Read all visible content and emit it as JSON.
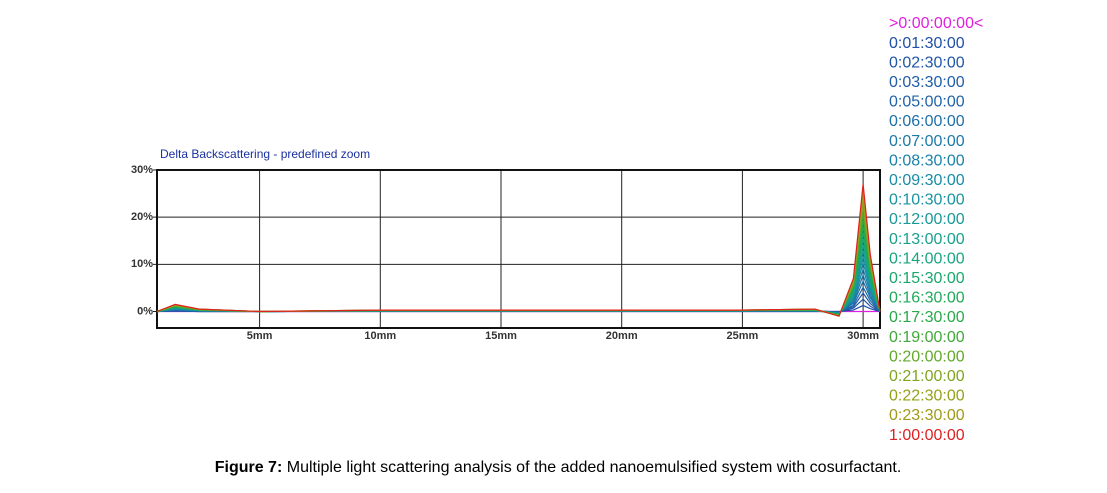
{
  "chart_data": {
    "type": "line",
    "title": "Delta Backscattering - predefined zoom",
    "x": [
      0.75,
      1.5,
      2.5,
      5,
      10,
      15,
      20,
      25,
      28,
      29,
      29.6,
      30,
      30.3,
      30.7
    ],
    "xlim": [
      0.75,
      30.7
    ],
    "xticks": [
      {
        "value": 5,
        "label": "5mm"
      },
      {
        "value": 10,
        "label": "10mm"
      },
      {
        "value": 15,
        "label": "15mm"
      },
      {
        "value": 20,
        "label": "20mm"
      },
      {
        "value": 25,
        "label": "25mm"
      },
      {
        "value": 30,
        "label": "30mm"
      }
    ],
    "ylim": [
      -3.5,
      30
    ],
    "yticks": [
      {
        "value": 0,
        "label": "0%"
      },
      {
        "value": 10,
        "label": "10%"
      },
      {
        "value": 20,
        "label": "20%"
      },
      {
        "value": 30,
        "label": "30%"
      }
    ],
    "grid": true,
    "series": [
      {
        "name": ">0:00:00:00<",
        "color": "#e020e0",
        "values": [
          0,
          0,
          0,
          0,
          0,
          0,
          0,
          0,
          0,
          0,
          0,
          0,
          0,
          0
        ]
      },
      {
        "name": "0:01:30:00",
        "color": "#1f4fa8",
        "values": [
          0,
          0.1,
          0,
          0,
          0,
          0,
          0,
          0,
          0,
          0,
          0.3,
          1.3,
          0.6,
          0
        ]
      },
      {
        "name": "0:02:30:00",
        "color": "#2055a8",
        "values": [
          0,
          0.1,
          0,
          0,
          0.1,
          0.1,
          0.1,
          0.1,
          0.1,
          -0.1,
          0.7,
          2.6,
          1.1,
          0
        ]
      },
      {
        "name": "0:03:30:00",
        "color": "#205ca8",
        "values": [
          0,
          0.2,
          0.1,
          0,
          0.1,
          0.1,
          0.1,
          0.1,
          0.1,
          -0.1,
          1.0,
          3.9,
          1.7,
          0
        ]
      },
      {
        "name": "0:05:00:00",
        "color": "#1f64a8",
        "values": [
          0,
          0.3,
          0.1,
          0,
          0.1,
          0.1,
          0.1,
          0.1,
          0.1,
          -0.2,
          1.3,
          5.1,
          2.3,
          0
        ]
      },
      {
        "name": "0:06:00:00",
        "color": "#1e6ea8",
        "values": [
          0,
          0.4,
          0.1,
          0,
          0.1,
          0.1,
          0.1,
          0.1,
          0.1,
          -0.2,
          1.7,
          6.4,
          2.9,
          0
        ]
      },
      {
        "name": "0:07:00:00",
        "color": "#1c78a8",
        "values": [
          0,
          0.4,
          0.1,
          0,
          0.1,
          0.1,
          0.1,
          0.1,
          0.2,
          -0.3,
          2.0,
          7.7,
          3.4,
          0
        ]
      },
      {
        "name": "0:08:30:00",
        "color": "#1a82a8",
        "values": [
          0,
          0.5,
          0.2,
          0,
          0.1,
          0.1,
          0.1,
          0.1,
          0.2,
          -0.3,
          2.3,
          9.0,
          4.0,
          0
        ]
      },
      {
        "name": "0:09:30:00",
        "color": "#188ca6",
        "values": [
          0,
          0.6,
          0.2,
          0,
          0.1,
          0.1,
          0.1,
          0.1,
          0.2,
          -0.4,
          2.7,
          10.3,
          4.6,
          0
        ]
      },
      {
        "name": "0:10:30:00",
        "color": "#1894a0",
        "values": [
          0,
          0.6,
          0.2,
          0,
          0.1,
          0.1,
          0.1,
          0.1,
          0.2,
          -0.4,
          3.0,
          11.6,
          5.1,
          0
        ]
      },
      {
        "name": "0:12:00:00",
        "color": "#189a98",
        "values": [
          0,
          0.7,
          0.2,
          0,
          0.2,
          0.2,
          0.2,
          0.2,
          0.2,
          -0.5,
          3.3,
          12.9,
          5.7,
          0
        ]
      },
      {
        "name": "0:13:00:00",
        "color": "#18a08c",
        "values": [
          0,
          0.8,
          0.3,
          0,
          0.2,
          0.2,
          0.2,
          0.2,
          0.3,
          -0.5,
          3.7,
          14.1,
          6.3,
          0
        ]
      },
      {
        "name": "0:14:00:00",
        "color": "#18a67e",
        "values": [
          0,
          0.9,
          0.3,
          0,
          0.2,
          0.2,
          0.2,
          0.2,
          0.3,
          -0.6,
          4.0,
          15.4,
          6.9,
          0
        ]
      },
      {
        "name": "0:15:30:00",
        "color": "#18a86c",
        "values": [
          0,
          0.9,
          0.3,
          0,
          0.2,
          0.2,
          0.2,
          0.2,
          0.3,
          -0.6,
          4.3,
          16.7,
          7.4,
          0
        ]
      },
      {
        "name": "0:16:30:00",
        "color": "#1eaa58",
        "values": [
          0,
          1.0,
          0.3,
          0,
          0.2,
          0.2,
          0.2,
          0.2,
          0.3,
          -0.7,
          4.7,
          18.0,
          8.0,
          0
        ]
      },
      {
        "name": "0:17:30:00",
        "color": "#28a848",
        "values": [
          0,
          1.1,
          0.4,
          0,
          0.2,
          0.2,
          0.2,
          0.2,
          0.4,
          -0.7,
          5.0,
          19.3,
          8.6,
          0
        ]
      },
      {
        "name": "0:19:00:00",
        "color": "#40a838",
        "values": [
          0,
          1.1,
          0.4,
          0,
          0.2,
          0.2,
          0.2,
          0.3,
          0.4,
          -0.8,
          5.3,
          20.6,
          9.1,
          0
        ]
      },
      {
        "name": "0:20:00:00",
        "color": "#62a82a",
        "values": [
          0,
          1.2,
          0.4,
          0,
          0.2,
          0.2,
          0.2,
          0.3,
          0.4,
          -0.8,
          5.7,
          21.9,
          9.7,
          0
        ]
      },
      {
        "name": "0:21:00:00",
        "color": "#80a420",
        "values": [
          0,
          1.3,
          0.4,
          0,
          0.3,
          0.3,
          0.3,
          0.3,
          0.4,
          -0.9,
          6.0,
          23.1,
          10.3,
          0
        ]
      },
      {
        "name": "0:22:30:00",
        "color": "#94a018",
        "values": [
          0,
          1.4,
          0.5,
          0,
          0.3,
          0.3,
          0.3,
          0.3,
          0.5,
          -0.9,
          6.3,
          24.4,
          10.9,
          0
        ]
      },
      {
        "name": "0:23:30:00",
        "color": "#a09a18",
        "values": [
          0,
          1.4,
          0.5,
          0,
          0.3,
          0.3,
          0.3,
          0.3,
          0.5,
          -1.0,
          6.7,
          25.7,
          11.4,
          0
        ]
      },
      {
        "name": "1:00:00:00",
        "color": "#e02020",
        "values": [
          0,
          1.5,
          0.5,
          0,
          0.3,
          0.3,
          0.3,
          0.3,
          0.5,
          -1.0,
          7.0,
          27.0,
          12.0,
          0
        ]
      }
    ]
  },
  "caption": {
    "label": "Figure 7:",
    "text": "Multiple light scattering analysis of the added nanoemulsified system with cosurfactant."
  }
}
